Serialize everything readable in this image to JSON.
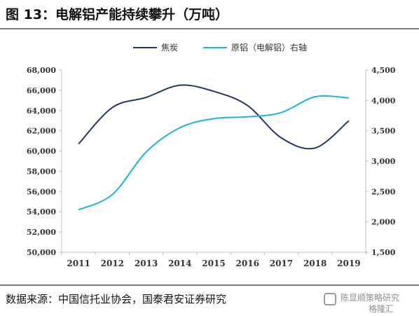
{
  "title": "图 13：电解铝产能持续攀升（万吨）",
  "source": "数据来源：中国信托业协会，国泰君安证券研究",
  "watermark": {
    "line1": "陈显顺策略研究",
    "line2": "格隆汇"
  },
  "colors": {
    "series1": "#1f3a5f",
    "series2": "#1cb2e8",
    "axis": "#bfbfbf",
    "text": "#333333"
  },
  "chart_data": {
    "type": "line",
    "x": [
      "2011",
      "2012",
      "2013",
      "2014",
      "2015",
      "2016",
      "2017",
      "2018",
      "2019"
    ],
    "series": [
      {
        "name": "焦炭",
        "axis": "left",
        "values": [
          60700,
          64300,
          65300,
          66500,
          65900,
          64500,
          61300,
          60300,
          63000
        ]
      },
      {
        "name": "原铝（电解铝）右轴",
        "axis": "right",
        "values": [
          2200,
          2450,
          3150,
          3550,
          3700,
          3730,
          3800,
          4060,
          4040
        ]
      }
    ],
    "y_left": {
      "min": 50000,
      "max": 68000,
      "step": 2000,
      "ticks": [
        "50,000",
        "52,000",
        "54,000",
        "56,000",
        "58,000",
        "60,000",
        "62,000",
        "64,000",
        "66,000",
        "68,000"
      ]
    },
    "y_right": {
      "min": 1500,
      "max": 4500,
      "step": 500,
      "ticks": [
        "1,500",
        "2,000",
        "2,500",
        "3,000",
        "3,500",
        "4,000",
        "4,500"
      ]
    },
    "legend_position": "top-center",
    "grid": false
  }
}
